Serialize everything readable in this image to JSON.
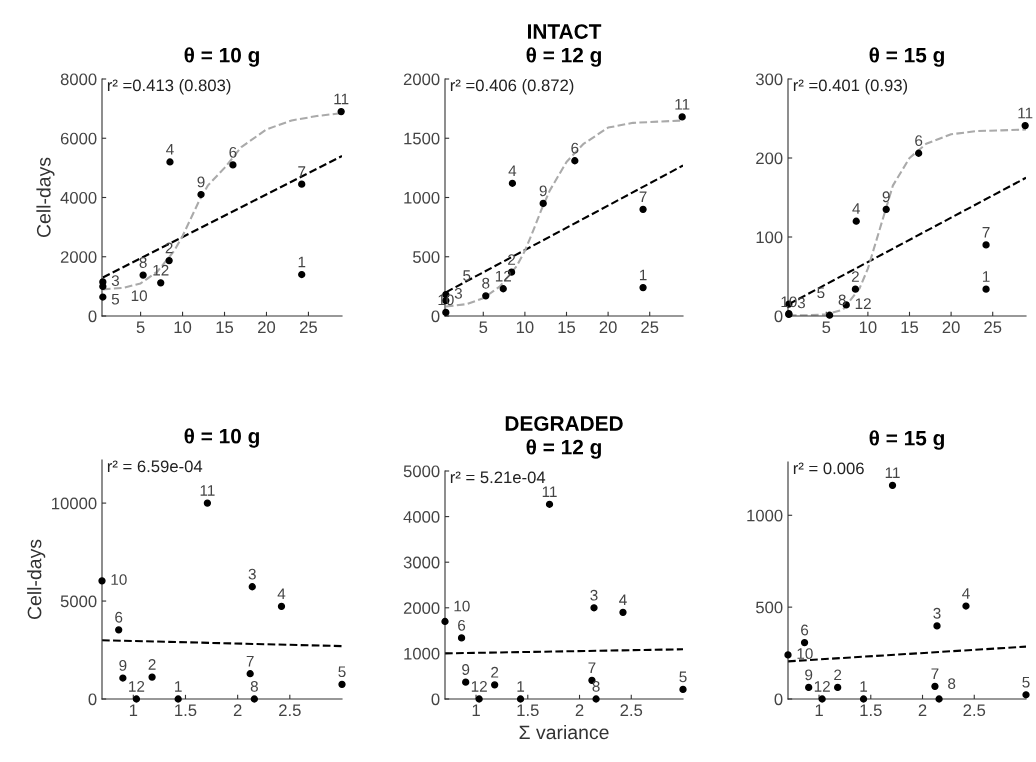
{
  "chart_data": [
    {
      "type": "scatter",
      "title": "θ = 10 g",
      "ylabel": "Cell-days",
      "xlim": [
        0.4,
        29
      ],
      "xticks": [
        5,
        10,
        15,
        20,
        25
      ],
      "ylim": [
        0,
        8000
      ],
      "yticks": [
        0,
        2000,
        4000,
        6000,
        8000
      ],
      "grid": false,
      "legend": false,
      "annotations": [
        "r² =0.413 (0.803)",
        {
          "text": "1",
          "x": 24.2,
          "y": 1400
        },
        {
          "text": "2",
          "x": 8.4,
          "y": 1870
        },
        {
          "text": "3",
          "x": 0.5,
          "y": 1150
        },
        {
          "text": "4",
          "x": 8.5,
          "y": 5200
        },
        {
          "text": "5",
          "x": 0.5,
          "y": 1000
        },
        {
          "text": "6",
          "x": 16.0,
          "y": 5100
        },
        {
          "text": "7",
          "x": 24.2,
          "y": 4450
        },
        {
          "text": "8",
          "x": 5.3,
          "y": 1380
        },
        {
          "text": "9",
          "x": 12.2,
          "y": 4100
        },
        {
          "text": "10",
          "x": 0.5,
          "y": 640
        },
        {
          "text": "11",
          "x": 28.9,
          "y": 6900
        },
        {
          "text": "12",
          "x": 7.4,
          "y": 1120
        }
      ],
      "series": [
        {
          "color": "#000000",
          "marker": "circle",
          "x": [
            24.2,
            8.4,
            0.5,
            8.5,
            0.5,
            16.0,
            24.2,
            5.3,
            12.2,
            0.5,
            28.9,
            7.4
          ],
          "values": [
            1400,
            1870,
            1150,
            5200,
            1000,
            5100,
            4450,
            1380,
            4100,
            640,
            6900,
            1120
          ]
        },
        {
          "type": "line",
          "color": "#000000",
          "line_style": "dashed",
          "x": [
            0.5,
            29
          ],
          "values": [
            1300,
            5400
          ]
        },
        {
          "type": "line",
          "color": "#aaaaaa",
          "line_style": "dashed",
          "x": [
            0.5,
            3,
            5,
            7,
            9,
            10,
            11,
            12,
            13,
            15,
            17,
            20,
            23,
            26,
            29
          ],
          "values": [
            900,
            950,
            1100,
            1500,
            2200,
            2700,
            3300,
            3900,
            4400,
            5000,
            5700,
            6300,
            6600,
            6750,
            6850
          ]
        }
      ]
    },
    {
      "type": "scatter",
      "title": "θ = 12 g",
      "xlim": [
        0.4,
        29
      ],
      "xticks": [
        5,
        10,
        15,
        20,
        25
      ],
      "ylim": [
        0,
        2000
      ],
      "yticks": [
        0,
        500,
        1000,
        1500,
        2000
      ],
      "grid": false,
      "legend": false,
      "annotations": [
        "r² =0.406 (0.872)",
        "INTACT",
        {
          "text": "1",
          "x": 24.2,
          "y": 240
        },
        {
          "text": "2",
          "x": 8.4,
          "y": 370
        },
        {
          "text": "3",
          "x": 0.5,
          "y": 180
        },
        {
          "text": "4",
          "x": 8.5,
          "y": 1120
        },
        {
          "text": "5",
          "x": 0.5,
          "y": 130
        },
        {
          "text": "6",
          "x": 16.0,
          "y": 1310
        },
        {
          "text": "7",
          "x": 24.2,
          "y": 900
        },
        {
          "text": "8",
          "x": 5.3,
          "y": 170
        },
        {
          "text": "9",
          "x": 12.2,
          "y": 950
        },
        {
          "text": "10",
          "x": 0.5,
          "y": 30
        },
        {
          "text": "11",
          "x": 28.9,
          "y": 1680
        },
        {
          "text": "12",
          "x": 7.4,
          "y": 230
        }
      ],
      "series": [
        {
          "color": "#000000",
          "marker": "circle",
          "x": [
            24.2,
            8.4,
            0.5,
            8.5,
            0.5,
            16.0,
            24.2,
            5.3,
            12.2,
            0.5,
            28.9,
            7.4
          ],
          "values": [
            240,
            370,
            180,
            1120,
            130,
            1310,
            900,
            170,
            950,
            30,
            1680,
            230
          ]
        },
        {
          "type": "line",
          "color": "#000000",
          "line_style": "dashed",
          "x": [
            0.5,
            29
          ],
          "values": [
            200,
            1270
          ]
        },
        {
          "type": "line",
          "color": "#aaaaaa",
          "line_style": "dashed",
          "x": [
            0.5,
            3,
            5,
            7,
            9,
            10,
            11,
            12,
            13,
            15,
            17,
            20,
            23,
            26,
            29
          ],
          "values": [
            80,
            100,
            150,
            250,
            420,
            550,
            720,
            900,
            1060,
            1300,
            1450,
            1590,
            1630,
            1640,
            1650
          ]
        }
      ]
    },
    {
      "type": "scatter",
      "title": "θ = 15 g",
      "xlim": [
        0.4,
        29
      ],
      "xticks": [
        5,
        10,
        15,
        20,
        25
      ],
      "ylim": [
        0,
        300
      ],
      "yticks": [
        0,
        100,
        200,
        300
      ],
      "grid": false,
      "legend": false,
      "annotations": [
        "r² =0.401 (0.93)",
        {
          "text": "1",
          "x": 24.2,
          "y": 34
        },
        {
          "text": "2",
          "x": 8.5,
          "y": 34
        },
        {
          "text": "3",
          "x": 0.5,
          "y": 15
        },
        {
          "text": "4",
          "x": 8.6,
          "y": 120
        },
        {
          "text": "5",
          "x": 0.5,
          "y": 3
        },
        {
          "text": "6",
          "x": 16.1,
          "y": 206
        },
        {
          "text": "7",
          "x": 24.2,
          "y": 90
        },
        {
          "text": "8",
          "x": 5.4,
          "y": 1
        },
        {
          "text": "9",
          "x": 12.2,
          "y": 135
        },
        {
          "text": "10",
          "x": 0.5,
          "y": 2
        },
        {
          "text": "11",
          "x": 28.9,
          "y": 241
        },
        {
          "text": "12",
          "x": 7.4,
          "y": 14
        }
      ],
      "series": [
        {
          "color": "#000000",
          "marker": "circle",
          "x": [
            24.2,
            8.5,
            0.5,
            8.6,
            0.5,
            16.1,
            24.2,
            5.4,
            12.2,
            0.5,
            28.9,
            7.4
          ],
          "values": [
            34,
            34,
            15,
            120,
            3,
            206,
            90,
            1,
            135,
            2,
            241,
            14
          ]
        },
        {
          "type": "line",
          "color": "#000000",
          "line_style": "dashed",
          "x": [
            0.5,
            29
          ],
          "values": [
            15,
            175
          ]
        },
        {
          "type": "line",
          "color": "#aaaaaa",
          "line_style": "dashed",
          "x": [
            0.5,
            3,
            5,
            7,
            9,
            10,
            11,
            12,
            13,
            15,
            17,
            20,
            23,
            26,
            29
          ],
          "values": [
            1,
            1,
            2,
            8,
            35,
            60,
            95,
            130,
            165,
            200,
            218,
            230,
            234,
            235,
            236
          ]
        }
      ]
    },
    {
      "type": "scatter",
      "title": "θ = 10 g",
      "ylabel": "Cell-days",
      "xlim": [
        0.7,
        3.0
      ],
      "xticks": [
        1,
        1.5,
        2,
        2.5
      ],
      "ylim": [
        0,
        12200
      ],
      "yticks": [
        0,
        5000,
        10000
      ],
      "grid": false,
      "legend": false,
      "annotations": [
        "r² = 6.59e-04",
        {
          "text": "1",
          "x": 1.43,
          "y": 0
        },
        {
          "text": "2",
          "x": 1.18,
          "y": 1120
        },
        {
          "text": "3",
          "x": 2.14,
          "y": 5730
        },
        {
          "text": "4",
          "x": 2.42,
          "y": 4730
        },
        {
          "text": "5",
          "x": 3.0,
          "y": 750
        },
        {
          "text": "6",
          "x": 0.86,
          "y": 3530
        },
        {
          "text": "7",
          "x": 2.12,
          "y": 1290
        },
        {
          "text": "8",
          "x": 2.16,
          "y": 0
        },
        {
          "text": "9",
          "x": 0.9,
          "y": 1070
        },
        {
          "text": "10",
          "x": 0.7,
          "y": 6030
        },
        {
          "text": "11",
          "x": 1.71,
          "y": 10000
        },
        {
          "text": "12",
          "x": 1.03,
          "y": 0
        }
      ],
      "series": [
        {
          "color": "#000000",
          "marker": "circle",
          "x": [
            1.43,
            1.18,
            2.14,
            2.42,
            3.0,
            0.86,
            2.12,
            2.16,
            0.9,
            0.7,
            1.71,
            1.03
          ],
          "values": [
            0,
            1120,
            5730,
            4730,
            750,
            3530,
            1290,
            0,
            1070,
            6030,
            10000,
            0
          ]
        },
        {
          "type": "line",
          "color": "#000000",
          "line_style": "dashed",
          "x": [
            0.7,
            3.0
          ],
          "values": [
            3000,
            2700
          ]
        }
      ]
    },
    {
      "type": "scatter",
      "title": "θ = 12 g",
      "xlabel": "Σ variance",
      "xlim": [
        0.7,
        3.0
      ],
      "xticks": [
        1,
        1.5,
        2,
        2.5
      ],
      "ylim": [
        0,
        5000
      ],
      "yticks": [
        0,
        1000,
        2000,
        3000,
        4000,
        5000
      ],
      "grid": false,
      "legend": false,
      "annotations": [
        "r² = 5.21e-04",
        "DEGRADED",
        {
          "text": "1",
          "x": 1.43,
          "y": 0
        },
        {
          "text": "2",
          "x": 1.18,
          "y": 310
        },
        {
          "text": "3",
          "x": 2.14,
          "y": 2000
        },
        {
          "text": "4",
          "x": 2.42,
          "y": 1900
        },
        {
          "text": "5",
          "x": 3.0,
          "y": 210
        },
        {
          "text": "6",
          "x": 0.86,
          "y": 1340
        },
        {
          "text": "7",
          "x": 2.12,
          "y": 410
        },
        {
          "text": "8",
          "x": 2.16,
          "y": 0
        },
        {
          "text": "9",
          "x": 0.9,
          "y": 370
        },
        {
          "text": "10",
          "x": 0.7,
          "y": 1700
        },
        {
          "text": "11",
          "x": 1.71,
          "y": 4270
        },
        {
          "text": "12",
          "x": 1.03,
          "y": 0
        }
      ],
      "series": [
        {
          "color": "#000000",
          "marker": "circle",
          "x": [
            1.43,
            1.18,
            2.14,
            2.42,
            3.0,
            0.86,
            2.12,
            2.16,
            0.9,
            0.7,
            1.71,
            1.03
          ],
          "values": [
            0,
            310,
            2000,
            1900,
            210,
            1340,
            410,
            0,
            370,
            1700,
            4270,
            0
          ]
        },
        {
          "type": "line",
          "color": "#000000",
          "line_style": "dashed",
          "x": [
            0.7,
            3.0
          ],
          "values": [
            1000,
            1090
          ]
        }
      ]
    },
    {
      "type": "scatter",
      "title": "θ = 15 g",
      "xlim": [
        0.7,
        3.0
      ],
      "xticks": [
        1,
        1.5,
        2,
        2.5
      ],
      "ylim": [
        0,
        1290
      ],
      "yticks": [
        0,
        500,
        1000
      ],
      "grid": false,
      "legend": false,
      "annotations": [
        "r² = 0.006",
        {
          "text": "1",
          "x": 1.43,
          "y": 0
        },
        {
          "text": "2",
          "x": 1.18,
          "y": 63
        },
        {
          "text": "3",
          "x": 2.14,
          "y": 398
        },
        {
          "text": "4",
          "x": 2.42,
          "y": 506
        },
        {
          "text": "5",
          "x": 3.0,
          "y": 23
        },
        {
          "text": "6",
          "x": 0.86,
          "y": 307
        },
        {
          "text": "7",
          "x": 2.12,
          "y": 69
        },
        {
          "text": "8",
          "x": 2.16,
          "y": 0
        },
        {
          "text": "9",
          "x": 0.9,
          "y": 63
        },
        {
          "text": "10",
          "x": 0.7,
          "y": 240
        },
        {
          "text": "11",
          "x": 1.71,
          "y": 1163
        },
        {
          "text": "12",
          "x": 1.03,
          "y": 0
        }
      ],
      "series": [
        {
          "color": "#000000",
          "marker": "circle",
          "x": [
            1.43,
            1.18,
            2.14,
            2.42,
            3.0,
            0.86,
            2.12,
            2.16,
            0.9,
            0.7,
            1.71,
            1.03
          ],
          "values": [
            0,
            63,
            398,
            506,
            23,
            307,
            69,
            0,
            63,
            240,
            1163,
            0
          ]
        },
        {
          "type": "line",
          "color": "#000000",
          "line_style": "dashed",
          "x": [
            0.7,
            3.0
          ],
          "values": [
            205,
            285
          ]
        }
      ]
    }
  ]
}
